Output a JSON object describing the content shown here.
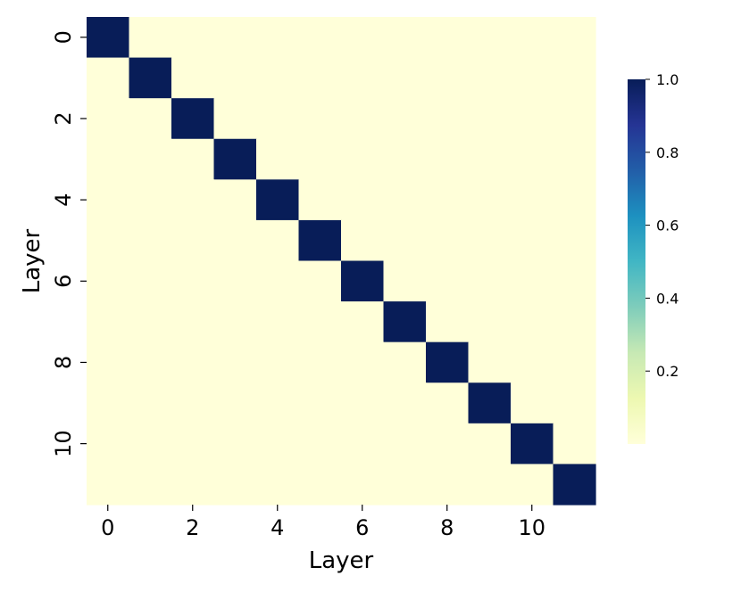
{
  "chart_data": {
    "type": "heatmap",
    "title": "",
    "xlabel": "Layer",
    "ylabel": "Layer",
    "x_categories": [
      0,
      1,
      2,
      3,
      4,
      5,
      6,
      7,
      8,
      9,
      10,
      11
    ],
    "y_categories": [
      0,
      1,
      2,
      3,
      4,
      5,
      6,
      7,
      8,
      9,
      10,
      11
    ],
    "x_tick_labels": [
      "0",
      "2",
      "4",
      "6",
      "8",
      "10"
    ],
    "y_tick_labels": [
      "0",
      "2",
      "4",
      "6",
      "8",
      "10"
    ],
    "values": [
      [
        1,
        0,
        0,
        0,
        0,
        0,
        0,
        0,
        0,
        0,
        0,
        0
      ],
      [
        0,
        1,
        0,
        0,
        0,
        0,
        0,
        0,
        0,
        0,
        0,
        0
      ],
      [
        0,
        0,
        1,
        0,
        0,
        0,
        0,
        0,
        0,
        0,
        0,
        0
      ],
      [
        0,
        0,
        0,
        1,
        0,
        0,
        0,
        0,
        0,
        0,
        0,
        0
      ],
      [
        0,
        0,
        0,
        0,
        1,
        0,
        0,
        0,
        0,
        0,
        0,
        0
      ],
      [
        0,
        0,
        0,
        0,
        0,
        1,
        0,
        0,
        0,
        0,
        0,
        0
      ],
      [
        0,
        0,
        0,
        0,
        0,
        0,
        1,
        0,
        0,
        0,
        0,
        0
      ],
      [
        0,
        0,
        0,
        0,
        0,
        0,
        0,
        1,
        0,
        0,
        0,
        0
      ],
      [
        0,
        0,
        0,
        0,
        0,
        0,
        0,
        0,
        1,
        0,
        0,
        0
      ],
      [
        0,
        0,
        0,
        0,
        0,
        0,
        0,
        0,
        0,
        1,
        0,
        0
      ],
      [
        0,
        0,
        0,
        0,
        0,
        0,
        0,
        0,
        0,
        0,
        1,
        0
      ],
      [
        0,
        0,
        0,
        0,
        0,
        0,
        0,
        0,
        0,
        0,
        0,
        1
      ]
    ],
    "colormap": "YlGnBu",
    "vmin": 0.0,
    "vmax": 1.0,
    "colorbar_ticks": [
      {
        "value": 0.2,
        "label": "0.2"
      },
      {
        "value": 0.4,
        "label": "0.4"
      },
      {
        "value": 0.6,
        "label": "0.6"
      },
      {
        "value": 0.8,
        "label": "0.8"
      },
      {
        "value": 1.0,
        "label": "1.0"
      }
    ],
    "grid": false,
    "legend": "colorbar-right"
  }
}
